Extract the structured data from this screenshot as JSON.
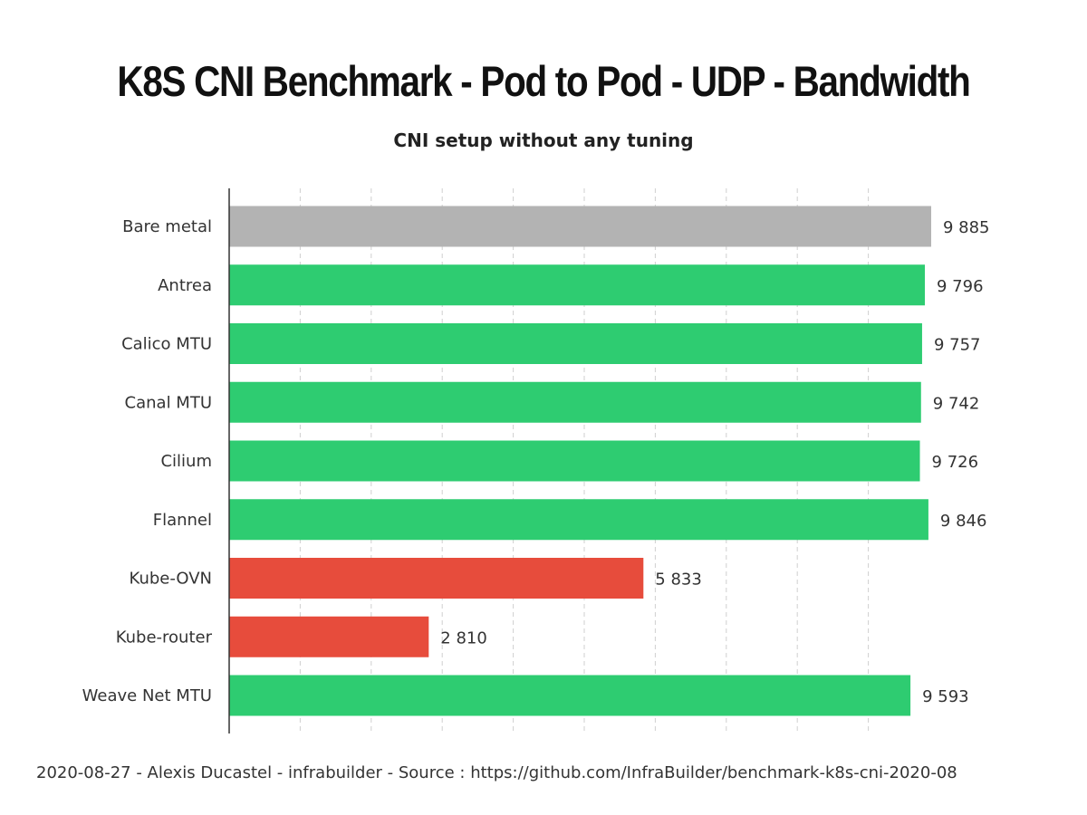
{
  "chart_data": {
    "type": "bar",
    "orientation": "horizontal",
    "title": "K8S CNI Benchmark  - Pod to Pod - UDP - Bandwidth",
    "subtitle": "CNI setup without any tuning",
    "categories": [
      "Bare metal",
      "Antrea",
      "Calico MTU",
      "Canal MTU",
      "Cilium",
      "Flannel",
      "Kube-OVN",
      "Kube-router",
      "Weave Net MTU"
    ],
    "values": [
      9885,
      9796,
      9757,
      9742,
      9726,
      9846,
      5833,
      2810,
      9593
    ],
    "value_labels": [
      "9 885",
      "9 796",
      "9 757",
      "9 742",
      "9 726",
      "9 846",
      "5 833",
      "2 810",
      "9 593"
    ],
    "bar_colors": [
      "#b3b3b3",
      "#2ecc71",
      "#2ecc71",
      "#2ecc71",
      "#2ecc71",
      "#2ecc71",
      "#e74c3c",
      "#e74c3c",
      "#2ecc71"
    ],
    "xlim": [
      0,
      11000
    ],
    "grid": true,
    "grid_style": "dashed vertical"
  },
  "footer": "2020-08-27 - Alexis Ducastel - infrabuilder - Source : https://github.com/InfraBuilder/benchmark-k8s-cni-2020-08"
}
